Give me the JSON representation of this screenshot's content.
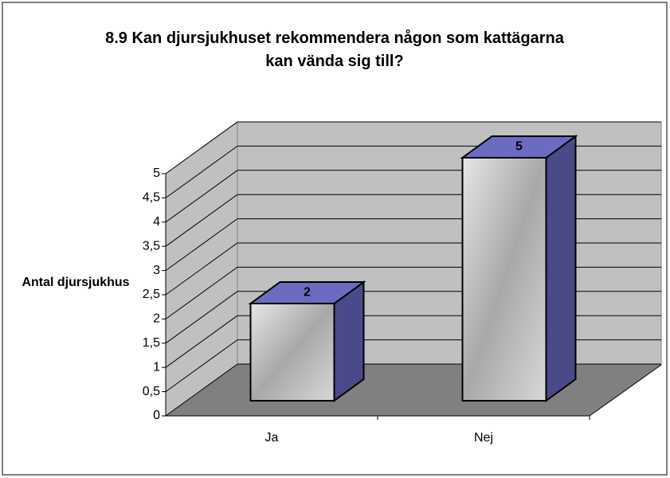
{
  "chart_data": {
    "type": "bar3d",
    "title": "8.9 Kan djursjukhuset rekommendera någon som kattägarna kan vända sig till?",
    "y_label": "Antal djursjukhus",
    "categories": [
      "Ja",
      "Nej"
    ],
    "values": [
      2,
      5
    ],
    "color": "#6b6bc2",
    "ylim": [
      0,
      5
    ],
    "yticks": [
      0,
      {
        "value": 0.5,
        "label": "0,5"
      },
      1,
      {
        "value": 1.5,
        "label": "1,5"
      },
      2,
      {
        "value": 2.5,
        "label": "2,5"
      },
      3,
      {
        "value": 3.5,
        "label": "3,5"
      },
      4,
      {
        "value": 4.5,
        "label": "4,5"
      },
      5
    ],
    "grid": true
  }
}
